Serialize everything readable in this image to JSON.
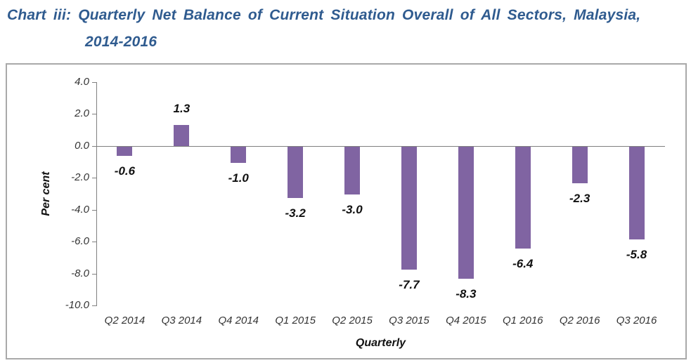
{
  "title": {
    "line1": "Chart iii: Quarterly Net Balance of Current Situation Overall of All Sectors, Malaysia,",
    "line2": "2014-2016",
    "color": "#2F5B8F"
  },
  "chart_data": {
    "type": "bar",
    "title": "Chart iii: Quarterly Net Balance of Current Situation Overall of All Sectors, Malaysia, 2014-2016",
    "categories": [
      "Q2 2014",
      "Q3 2014",
      "Q4 2014",
      "Q1 2015",
      "Q2 2015",
      "Q3 2015",
      "Q4 2015",
      "Q1 2016",
      "Q2 2016",
      "Q3 2016"
    ],
    "values": [
      -0.6,
      1.3,
      -1.0,
      -3.2,
      -3.0,
      -7.7,
      -8.3,
      -6.4,
      -2.3,
      -5.8
    ],
    "data_labels": [
      "-0.6",
      "1.3",
      "-1.0",
      "-3.2",
      "-3.0",
      "-7.7",
      "-8.3",
      "-6.4",
      "-2.3",
      "-5.8"
    ],
    "xlabel": "Quarterly",
    "ylabel": "Per cent",
    "ylim": [
      -10.0,
      4.0
    ],
    "ytick_interval": 2.0,
    "ytick_labels": [
      "4.0",
      "2.0",
      "0.0",
      "-2.0",
      "-4.0",
      "-6.0",
      "-8.0",
      "-10.0"
    ],
    "ytick_values": [
      4.0,
      2.0,
      0.0,
      -2.0,
      -4.0,
      -6.0,
      -8.0,
      -10.0
    ],
    "grid": false,
    "legend": "none",
    "bar_color": "#8064A2",
    "axis_color": "#808080",
    "frame_border_color": "#A9A9A9"
  }
}
